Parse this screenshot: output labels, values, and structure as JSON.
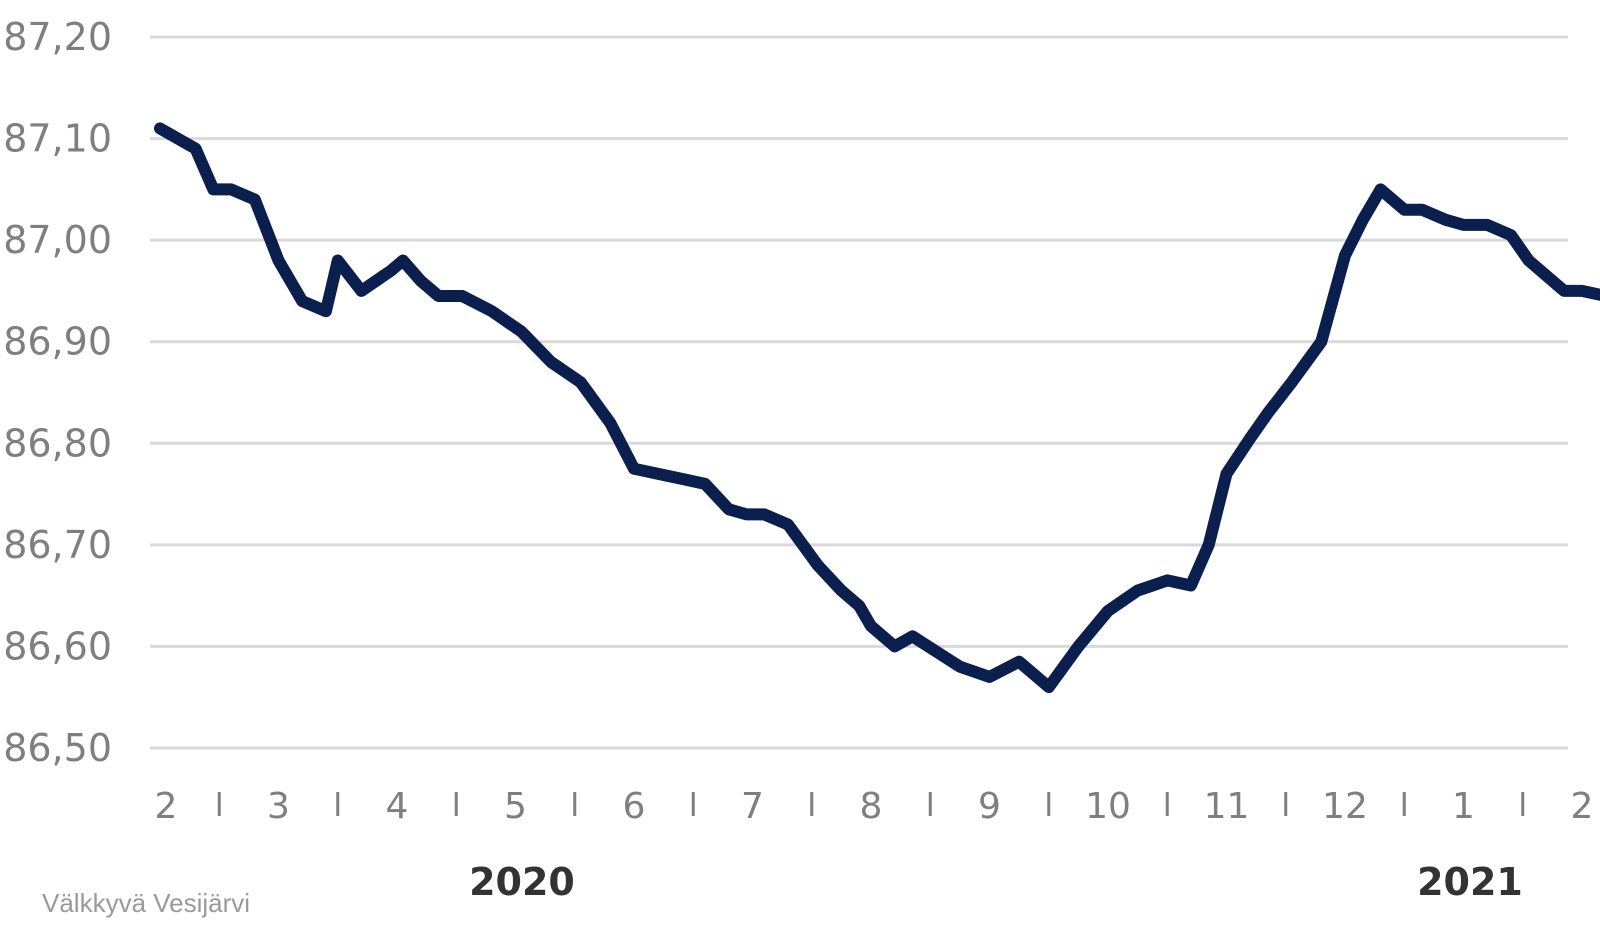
{
  "chart_data": {
    "type": "line",
    "yticks": [
      "86,50",
      "86,60",
      "86,70",
      "86,80",
      "86,90",
      "87,00",
      "87,10",
      "87,20"
    ],
    "ylim": [
      86.5,
      87.2
    ],
    "month_labels": [
      "2",
      "3",
      "4",
      "5",
      "6",
      "7",
      "8",
      "9",
      "10",
      "11",
      "12",
      "1",
      "2"
    ],
    "years": [
      "2020",
      "2021"
    ],
    "source": "Välkkyvä Vesijärvi",
    "grid": true,
    "line_color": "#0b1f4f",
    "series": [
      {
        "x": [
          0.0,
          0.15,
          0.3,
          0.45,
          0.6,
          0.8,
          1.0,
          1.2,
          1.4,
          1.5,
          1.7,
          1.95,
          2.05,
          2.2,
          2.35,
          2.55,
          2.8,
          3.05,
          3.3,
          3.55,
          3.8,
          4.0,
          4.2,
          4.4,
          4.6,
          4.8,
          4.95,
          5.1,
          5.3,
          5.55,
          5.75,
          5.9,
          6.0,
          6.2,
          6.35,
          6.55,
          6.75,
          7.0,
          7.25,
          7.5,
          7.75,
          8.0,
          8.25,
          8.5,
          8.7,
          8.85,
          9.0,
          9.2,
          9.35,
          9.55,
          9.8,
          10.0,
          10.15,
          10.3,
          10.5,
          10.65,
          10.85,
          11.0,
          11.2,
          11.4,
          11.55,
          11.7,
          11.85,
          12.0,
          12.2,
          12.4,
          12.55,
          12.7
        ],
        "values": [
          87.11,
          87.1,
          87.09,
          87.05,
          87.05,
          87.04,
          86.98,
          86.94,
          86.93,
          86.98,
          86.95,
          86.97,
          86.98,
          86.96,
          86.945,
          86.945,
          86.93,
          86.91,
          86.88,
          86.86,
          86.82,
          86.775,
          86.77,
          86.765,
          86.76,
          86.735,
          86.73,
          86.73,
          86.72,
          86.68,
          86.655,
          86.64,
          86.62,
          86.6,
          86.61,
          86.595,
          86.58,
          86.57,
          86.585,
          86.56,
          86.6,
          86.635,
          86.655,
          86.665,
          86.66,
          86.7,
          86.77,
          86.805,
          86.83,
          86.86,
          86.9,
          86.985,
          87.02,
          87.05,
          87.03,
          87.03,
          87.02,
          87.015,
          87.015,
          87.005,
          86.98,
          86.965,
          86.95,
          86.95,
          86.945,
          86.95,
          86.96,
          86.95
        ]
      }
    ]
  }
}
